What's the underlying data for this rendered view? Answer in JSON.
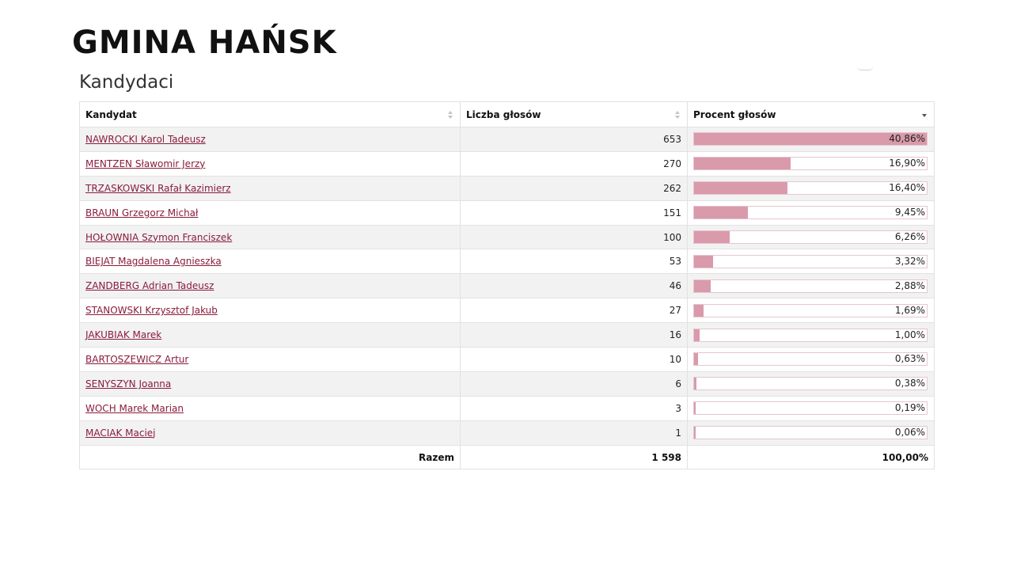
{
  "page": {
    "title": "GMINA HAŃSK",
    "section_title": "Kandydaci"
  },
  "table": {
    "headers": {
      "candidate": "Kandydat",
      "votes": "Liczba głosów",
      "percent": "Procent głosów"
    },
    "sorted_by": "percent",
    "sort_direction": "descending",
    "rows": [
      {
        "name": "NAWROCKI Karol Tadeusz",
        "votes": "653",
        "percent_label": "40,86%",
        "percent": 40.86
      },
      {
        "name": "MENTZEN Sławomir Jerzy",
        "votes": "270",
        "percent_label": "16,90%",
        "percent": 16.9
      },
      {
        "name": "TRZASKOWSKI Rafał Kazimierz",
        "votes": "262",
        "percent_label": "16,40%",
        "percent": 16.4
      },
      {
        "name": "BRAUN Grzegorz Michał",
        "votes": "151",
        "percent_label": "9,45%",
        "percent": 9.45
      },
      {
        "name": "HOŁOWNIA Szymon Franciszek",
        "votes": "100",
        "percent_label": "6,26%",
        "percent": 6.26
      },
      {
        "name": "BIEJAT Magdalena Agnieszka",
        "votes": "53",
        "percent_label": "3,32%",
        "percent": 3.32
      },
      {
        "name": "ZANDBERG Adrian Tadeusz",
        "votes": "46",
        "percent_label": "2,88%",
        "percent": 2.88
      },
      {
        "name": "STANOWSKI Krzysztof Jakub",
        "votes": "27",
        "percent_label": "1,69%",
        "percent": 1.69
      },
      {
        "name": "JAKUBIAK Marek",
        "votes": "16",
        "percent_label": "1,00%",
        "percent": 1.0
      },
      {
        "name": "BARTOSZEWICZ Artur",
        "votes": "10",
        "percent_label": "0,63%",
        "percent": 0.63
      },
      {
        "name": "SENYSZYN Joanna",
        "votes": "6",
        "percent_label": "0,38%",
        "percent": 0.38
      },
      {
        "name": "WOCH Marek Marian",
        "votes": "3",
        "percent_label": "0,19%",
        "percent": 0.19
      },
      {
        "name": "MACIAK Maciej",
        "votes": "1",
        "percent_label": "0,06%",
        "percent": 0.06
      }
    ],
    "total": {
      "label": "Razem",
      "votes": "1 598",
      "percent": "100,00%"
    }
  },
  "colors": {
    "bar_fill": "#d99aab",
    "link": "#8a1c3c",
    "zebra": "#f2f2f2"
  }
}
